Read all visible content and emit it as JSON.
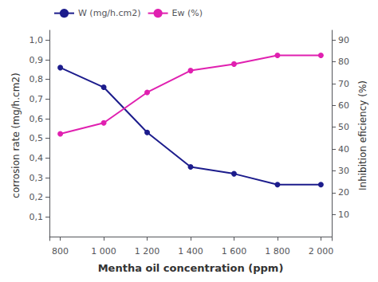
{
  "chart_data": {
    "type": "line",
    "x_label": "Mentha oil concentration (ppm)",
    "y_label": "corrosion rate (mg/h.cm2)",
    "y2_label": "Inhibition eficiency (%)",
    "x": [
      800,
      1000,
      1200,
      1400,
      1600,
      1800,
      2000
    ],
    "series": [
      {
        "name": "W (mg/h.cm2)",
        "color": "#1c1c8c",
        "marker": "circle",
        "values": [
          0.86,
          0.76,
          0.53,
          0.355,
          0.32,
          0.265,
          0.265
        ]
      },
      {
        "name": "Ew (%)",
        "color": "#e020b0",
        "marker": "circle",
        "axis": "y2",
        "values": [
          47,
          52,
          66,
          76,
          79,
          83,
          83
        ]
      }
    ],
    "xlim": [
      750,
      2050
    ],
    "xticks": [
      800,
      {
        "value": 1000,
        "label": "1 000"
      },
      {
        "value": 1200,
        "label": "1 200"
      },
      {
        "value": 1400,
        "label": "1 400"
      },
      {
        "value": 1600,
        "label": "1 600"
      },
      {
        "value": 1800,
        "label": "1 800"
      },
      {
        "value": 2000,
        "label": "2 000"
      }
    ],
    "ylim": [
      -0.02,
      1.05
    ],
    "yticks": [
      {
        "value": 0.1,
        "label": "0,1"
      },
      {
        "value": 0.2,
        "label": "0,2"
      },
      {
        "value": 0.3,
        "label": "0,3"
      },
      {
        "value": 0.4,
        "label": "0,4"
      },
      {
        "value": 0.5,
        "label": "0,5"
      },
      {
        "value": 0.6,
        "label": "0,6"
      },
      {
        "value": 0.7,
        "label": "0,7"
      },
      {
        "value": 0.8,
        "label": "0,8"
      },
      {
        "value": 0.9,
        "label": "0,9"
      },
      {
        "value": 1.0,
        "label": "1,0"
      }
    ],
    "y2lim": [
      -2,
      94.5
    ],
    "y2ticks": [
      10,
      20,
      30,
      40,
      50,
      60,
      70,
      80,
      90
    ],
    "grid": false,
    "legend": "upper left"
  }
}
